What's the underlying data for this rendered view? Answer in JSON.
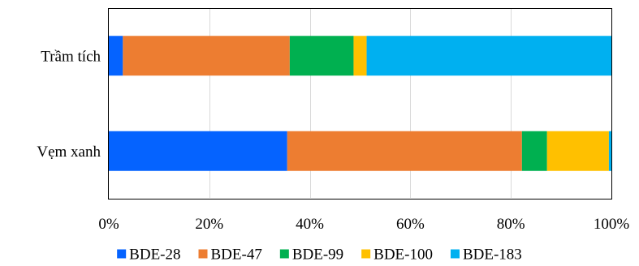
{
  "chart_data": {
    "type": "bar",
    "orientation": "horizontal",
    "stacked": "percent",
    "categories": [
      "Trầm tích",
      "Vẹm xanh"
    ],
    "series": [
      {
        "name": "BDE-28",
        "color": "#0563FF",
        "values": [
          2.8,
          35.5
        ]
      },
      {
        "name": "BDE-47",
        "color": "#ED7D31",
        "values": [
          33.2,
          46.7
        ]
      },
      {
        "name": "BDE-99",
        "color": "#00B050",
        "values": [
          12.7,
          5.0
        ]
      },
      {
        "name": "BDE-100",
        "color": "#FFC000",
        "values": [
          2.6,
          12.3
        ]
      },
      {
        "name": "BDE-183",
        "color": "#00B0F0",
        "values": [
          48.7,
          0.5
        ]
      }
    ],
    "xlim": [
      0,
      100
    ],
    "xticks": [
      0,
      20,
      40,
      60,
      80,
      100
    ],
    "xtick_labels": [
      "0%",
      "20%",
      "40%",
      "60%",
      "80%",
      "100%"
    ],
    "grid": {
      "vertical": true,
      "color": "#D9D9D9"
    },
    "legend_position": "bottom",
    "title": "",
    "xlabel": "",
    "ylabel": ""
  }
}
